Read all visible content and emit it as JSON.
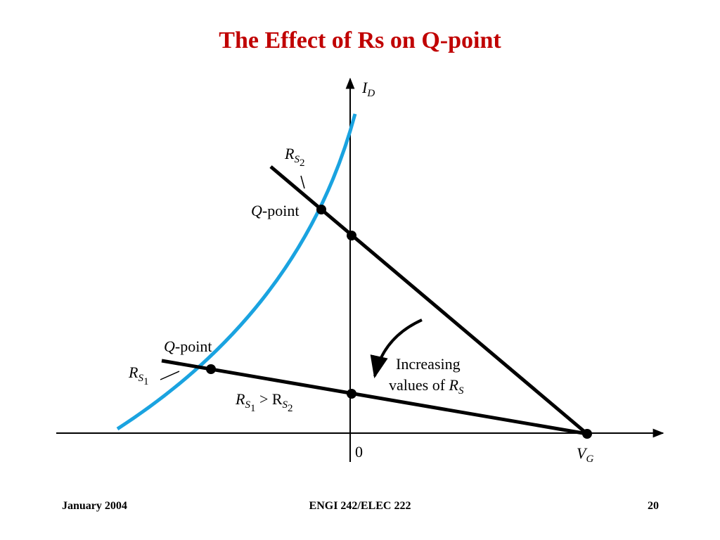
{
  "title": "The Effect of Rs on Q-point",
  "labels": {
    "id": [
      "I",
      "D"
    ],
    "rs2": [
      "R",
      "S",
      "2"
    ],
    "qpoint_upper": [
      "Q",
      "-point"
    ],
    "qpoint_lower": [
      "Q",
      "-point"
    ],
    "rs1": [
      "R",
      "S",
      "1"
    ],
    "comparison": [
      "R",
      "S",
      "1",
      " > R",
      "S",
      "2"
    ],
    "increasing_line1": "Increasing",
    "increasing_line2": [
      "values of ",
      "R",
      "S"
    ],
    "origin": "0",
    "vg": [
      "V",
      "G"
    ]
  },
  "footer": {
    "left": "January 2004",
    "center": "ENGI 242/ELEC 222",
    "right": "20"
  }
}
